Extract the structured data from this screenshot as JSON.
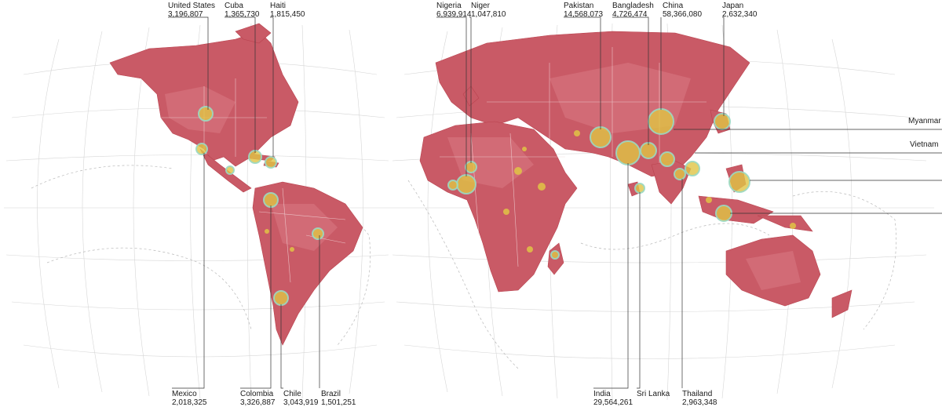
{
  "labels": {
    "united_states": {
      "name": "United States",
      "value": "3,196,807"
    },
    "cuba": {
      "name": "Cuba",
      "value": "1,365,730"
    },
    "haiti": {
      "name": "Haiti",
      "value": "1,815,450"
    },
    "nigeria": {
      "name": "Nigeria",
      "value": "6,939,914"
    },
    "niger": {
      "name": "Niger",
      "value": "1,047,810"
    },
    "pakistan": {
      "name": "Pakistan",
      "value": "14,568,073"
    },
    "bangladesh": {
      "name": "Bangladesh",
      "value": "4,726,474"
    },
    "china": {
      "name": "China",
      "value": "58,366,080"
    },
    "japan": {
      "name": "Japan",
      "value": "2,632,340"
    },
    "mexico": {
      "name": "Mexico",
      "value": "2,018,325"
    },
    "colombia": {
      "name": "Colombia",
      "value": "3,326,887"
    },
    "chile": {
      "name": "Chile",
      "value": "3,043,919"
    },
    "brazil": {
      "name": "Brazil",
      "value": "1,501,251"
    },
    "india": {
      "name": "India",
      "value": "29,564,261"
    },
    "sri_lanka": {
      "name": "Sri Lanka",
      "value": ""
    },
    "thailand": {
      "name": "Thailand",
      "value": "2,963,348"
    }
  },
  "side_labels": {
    "myanmar": "Myanmar",
    "vietnam": "Vietnam"
  },
  "colors": {
    "land": "#c95a66",
    "bubble_fill": "#e0c445",
    "bubble_ring": "#9ad8c2",
    "graticule": "#d6d6d6"
  }
}
